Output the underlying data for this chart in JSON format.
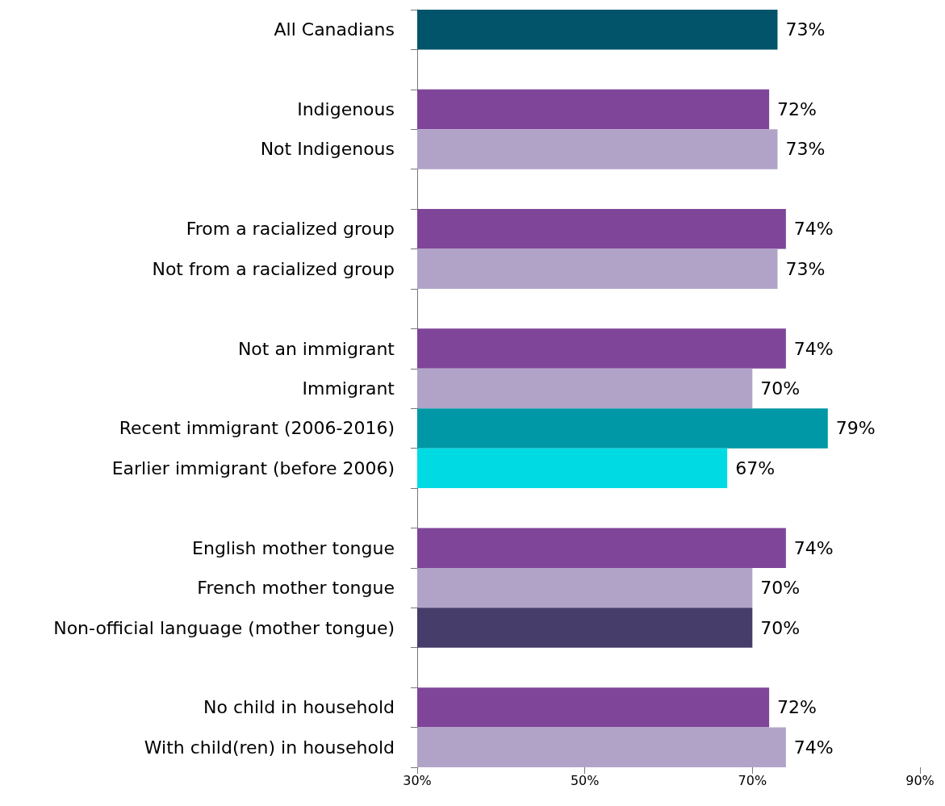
{
  "chart_data": {
    "type": "bar",
    "orientation": "horizontal",
    "categories": [
      "All Canadians",
      null,
      "Indigenous",
      "Not Indigenous",
      null,
      "From a racialized group",
      "Not from a racialized group",
      null,
      "Not an immigrant",
      "Immigrant",
      "Recent immigrant (2006-2016)",
      "Earlier immigrant (before 2006)",
      null,
      "English mother tongue",
      "French mother tongue",
      "Non-official language (mother tongue)",
      null,
      "No child in household",
      "With child(ren) in household"
    ],
    "values": [
      73,
      null,
      72,
      73,
      null,
      74,
      73,
      null,
      74,
      70,
      79,
      67,
      null,
      74,
      70,
      70,
      null,
      72,
      74
    ],
    "value_labels": [
      "73%",
      null,
      "72%",
      "73%",
      null,
      "74%",
      "73%",
      null,
      "74%",
      "70%",
      "79%",
      "67%",
      null,
      "74%",
      "70%",
      "70%",
      null,
      "72%",
      "74%"
    ],
    "colors": [
      "#01546a",
      null,
      "#7f4599",
      "#b1a3c8",
      null,
      "#7f4599",
      "#b1a3c8",
      null,
      "#7f4599",
      "#b1a3c8",
      "#0098a6",
      "#00dbe3",
      null,
      "#7f4599",
      "#b1a3c8",
      "#463d6b",
      null,
      "#7f4599",
      "#b1a3c8"
    ],
    "xlim": [
      30,
      90
    ],
    "xticks": [
      {
        "value": 30,
        "label": "30%"
      },
      {
        "value": 50,
        "label": "50%"
      },
      {
        "value": 70,
        "label": "70%"
      },
      {
        "value": 90,
        "label": "90%"
      }
    ],
    "grid": false
  }
}
